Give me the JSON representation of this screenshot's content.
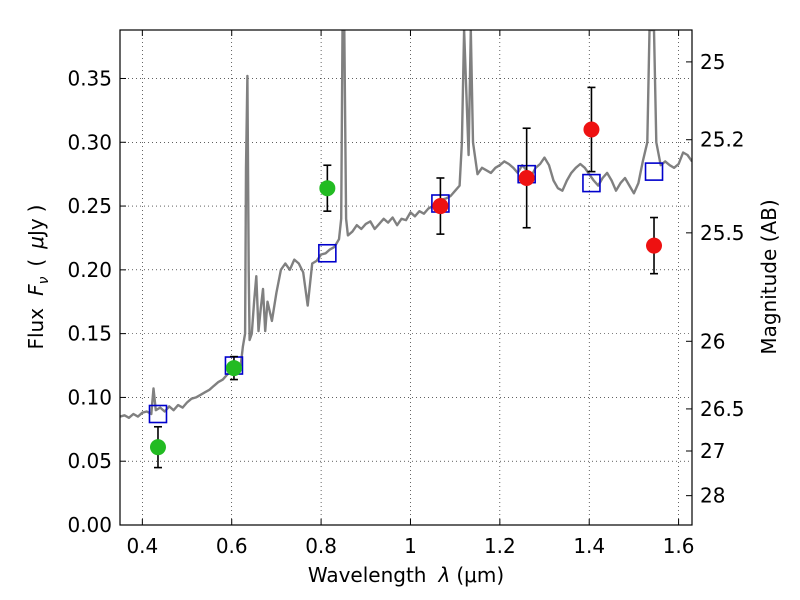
{
  "chart_data": {
    "type": "scatter",
    "xlabel": "Wavelength  λ (μm)",
    "ylabel": "Flux  F_ν  ( μJy )",
    "ylabel_parts": {
      "prefix": "Flux",
      "symbol": "F",
      "sub": "ν",
      "paren_open": "(",
      "mu": "μ",
      "unit": "Jy",
      "paren_close": ")"
    },
    "xlabel_parts": {
      "prefix": "Wavelength",
      "lambda": "λ",
      "unit": "(μm)"
    },
    "y2label": "Magnitude (AB)",
    "xlim": [
      0.35,
      1.63
    ],
    "ylim": [
      0.0,
      0.388
    ],
    "grid": true,
    "x_ticks": [
      {
        "v": 0.4,
        "label": "0.4"
      },
      {
        "v": 0.6,
        "label": "0.6"
      },
      {
        "v": 0.8,
        "label": "0.8"
      },
      {
        "v": 1.0,
        "label": "1"
      },
      {
        "v": 1.2,
        "label": "1.2"
      },
      {
        "v": 1.4,
        "label": "1.4"
      },
      {
        "v": 1.6,
        "label": "1.6"
      }
    ],
    "y_ticks": [
      {
        "v": 0.0,
        "label": "0.00"
      },
      {
        "v": 0.05,
        "label": "0.05"
      },
      {
        "v": 0.1,
        "label": "0.10"
      },
      {
        "v": 0.15,
        "label": "0.15"
      },
      {
        "v": 0.2,
        "label": "0.20"
      },
      {
        "v": 0.25,
        "label": "0.25"
      },
      {
        "v": 0.3,
        "label": "0.30"
      },
      {
        "v": 0.35,
        "label": "0.35"
      }
    ],
    "y2_ticks": [
      {
        "flux": 0.363,
        "label": "25"
      },
      {
        "flux": 0.302,
        "label": "25.2"
      },
      {
        "flux": 0.229,
        "label": "25.5"
      },
      {
        "flux": 0.144,
        "label": "26"
      },
      {
        "flux": 0.091,
        "label": "26.5"
      },
      {
        "flux": 0.058,
        "label": "27"
      },
      {
        "flux": 0.023,
        "label": "28"
      }
    ],
    "series": [
      {
        "name": "model-spectrum",
        "kind": "line",
        "color": "#808080",
        "points": [
          [
            0.35,
            0.085
          ],
          [
            0.36,
            0.086
          ],
          [
            0.37,
            0.084
          ],
          [
            0.38,
            0.087
          ],
          [
            0.39,
            0.085
          ],
          [
            0.4,
            0.088
          ],
          [
            0.41,
            0.089
          ],
          [
            0.42,
            0.087
          ],
          [
            0.425,
            0.107
          ],
          [
            0.43,
            0.09
          ],
          [
            0.44,
            0.092
          ],
          [
            0.45,
            0.089
          ],
          [
            0.46,
            0.093
          ],
          [
            0.47,
            0.09
          ],
          [
            0.48,
            0.094
          ],
          [
            0.49,
            0.092
          ],
          [
            0.5,
            0.096
          ],
          [
            0.51,
            0.099
          ],
          [
            0.52,
            0.1
          ],
          [
            0.53,
            0.102
          ],
          [
            0.54,
            0.104
          ],
          [
            0.55,
            0.106
          ],
          [
            0.56,
            0.109
          ],
          [
            0.57,
            0.112
          ],
          [
            0.58,
            0.114
          ],
          [
            0.59,
            0.118
          ],
          [
            0.6,
            0.121
          ],
          [
            0.61,
            0.124
          ],
          [
            0.615,
            0.127
          ],
          [
            0.62,
            0.125
          ],
          [
            0.625,
            0.14
          ],
          [
            0.63,
            0.15
          ],
          [
            0.632,
            0.28
          ],
          [
            0.635,
            0.352
          ],
          [
            0.638,
            0.2
          ],
          [
            0.64,
            0.145
          ],
          [
            0.645,
            0.15
          ],
          [
            0.65,
            0.175
          ],
          [
            0.655,
            0.195
          ],
          [
            0.66,
            0.152
          ],
          [
            0.665,
            0.17
          ],
          [
            0.67,
            0.185
          ],
          [
            0.675,
            0.152
          ],
          [
            0.68,
            0.175
          ],
          [
            0.69,
            0.16
          ],
          [
            0.7,
            0.182
          ],
          [
            0.71,
            0.2
          ],
          [
            0.72,
            0.205
          ],
          [
            0.73,
            0.2
          ],
          [
            0.74,
            0.208
          ],
          [
            0.75,
            0.205
          ],
          [
            0.76,
            0.198
          ],
          [
            0.77,
            0.172
          ],
          [
            0.78,
            0.205
          ],
          [
            0.79,
            0.207
          ],
          [
            0.8,
            0.212
          ],
          [
            0.81,
            0.213
          ],
          [
            0.82,
            0.216
          ],
          [
            0.83,
            0.218
          ],
          [
            0.84,
            0.224
          ],
          [
            0.845,
            0.24
          ],
          [
            0.848,
            0.388
          ],
          [
            0.852,
            0.388
          ],
          [
            0.856,
            0.24
          ],
          [
            0.86,
            0.227
          ],
          [
            0.87,
            0.23
          ],
          [
            0.88,
            0.235
          ],
          [
            0.89,
            0.232
          ],
          [
            0.9,
            0.236
          ],
          [
            0.91,
            0.238
          ],
          [
            0.92,
            0.232
          ],
          [
            0.93,
            0.236
          ],
          [
            0.94,
            0.24
          ],
          [
            0.95,
            0.237
          ],
          [
            0.96,
            0.241
          ],
          [
            0.97,
            0.235
          ],
          [
            0.98,
            0.24
          ],
          [
            0.99,
            0.239
          ],
          [
            1.0,
            0.245
          ],
          [
            1.01,
            0.242
          ],
          [
            1.02,
            0.246
          ],
          [
            1.03,
            0.244
          ],
          [
            1.04,
            0.248
          ],
          [
            1.05,
            0.25
          ],
          [
            1.06,
            0.252
          ],
          [
            1.07,
            0.255
          ],
          [
            1.08,
            0.256
          ],
          [
            1.09,
            0.258
          ],
          [
            1.1,
            0.262
          ],
          [
            1.11,
            0.266
          ],
          [
            1.115,
            0.3
          ],
          [
            1.12,
            0.388
          ],
          [
            1.13,
            0.29
          ],
          [
            1.135,
            0.388
          ],
          [
            1.14,
            0.3
          ],
          [
            1.15,
            0.275
          ],
          [
            1.16,
            0.28
          ],
          [
            1.17,
            0.278
          ],
          [
            1.18,
            0.276
          ],
          [
            1.19,
            0.28
          ],
          [
            1.2,
            0.282
          ],
          [
            1.21,
            0.285
          ],
          [
            1.22,
            0.283
          ],
          [
            1.23,
            0.28
          ],
          [
            1.24,
            0.276
          ],
          [
            1.25,
            0.282
          ],
          [
            1.26,
            0.278
          ],
          [
            1.27,
            0.273
          ],
          [
            1.28,
            0.28
          ],
          [
            1.29,
            0.283
          ],
          [
            1.3,
            0.288
          ],
          [
            1.31,
            0.282
          ],
          [
            1.32,
            0.27
          ],
          [
            1.33,
            0.264
          ],
          [
            1.34,
            0.262
          ],
          [
            1.35,
            0.27
          ],
          [
            1.36,
            0.276
          ],
          [
            1.37,
            0.28
          ],
          [
            1.38,
            0.283
          ],
          [
            1.39,
            0.28
          ],
          [
            1.4,
            0.275
          ],
          [
            1.41,
            0.27
          ],
          [
            1.42,
            0.266
          ],
          [
            1.43,
            0.272
          ],
          [
            1.44,
            0.276
          ],
          [
            1.45,
            0.27
          ],
          [
            1.46,
            0.262
          ],
          [
            1.47,
            0.268
          ],
          [
            1.48,
            0.272
          ],
          [
            1.49,
            0.266
          ],
          [
            1.5,
            0.26
          ],
          [
            1.51,
            0.268
          ],
          [
            1.52,
            0.285
          ],
          [
            1.53,
            0.3
          ],
          [
            1.535,
            0.388
          ],
          [
            1.545,
            0.388
          ],
          [
            1.55,
            0.3
          ],
          [
            1.56,
            0.282
          ],
          [
            1.57,
            0.285
          ],
          [
            1.58,
            0.282
          ],
          [
            1.59,
            0.28
          ],
          [
            1.6,
            0.283
          ],
          [
            1.61,
            0.292
          ],
          [
            1.62,
            0.29
          ],
          [
            1.63,
            0.285
          ]
        ]
      },
      {
        "name": "model-photometry",
        "kind": "open-square",
        "color": "#0000cc",
        "points": [
          [
            0.435,
            0.087
          ],
          [
            0.605,
            0.125
          ],
          [
            0.814,
            0.213
          ],
          [
            1.067,
            0.252
          ],
          [
            1.26,
            0.275
          ],
          [
            1.405,
            0.268
          ],
          [
            1.545,
            0.277
          ]
        ]
      },
      {
        "name": "observed-green",
        "kind": "filled-circle",
        "color": "#22bb22",
        "points": [
          {
            "x": 0.435,
            "y": 0.061,
            "err": 0.016
          },
          {
            "x": 0.605,
            "y": 0.123,
            "err": 0.009
          },
          {
            "x": 0.814,
            "y": 0.264,
            "err": 0.018
          }
        ]
      },
      {
        "name": "observed-red",
        "kind": "filled-circle",
        "color": "#ee1111",
        "points": [
          {
            "x": 1.067,
            "y": 0.25,
            "err": 0.022
          },
          {
            "x": 1.26,
            "y": 0.272,
            "err": 0.039
          },
          {
            "x": 1.405,
            "y": 0.31,
            "err": 0.033
          },
          {
            "x": 1.545,
            "y": 0.219,
            "err": 0.022
          }
        ]
      }
    ]
  }
}
